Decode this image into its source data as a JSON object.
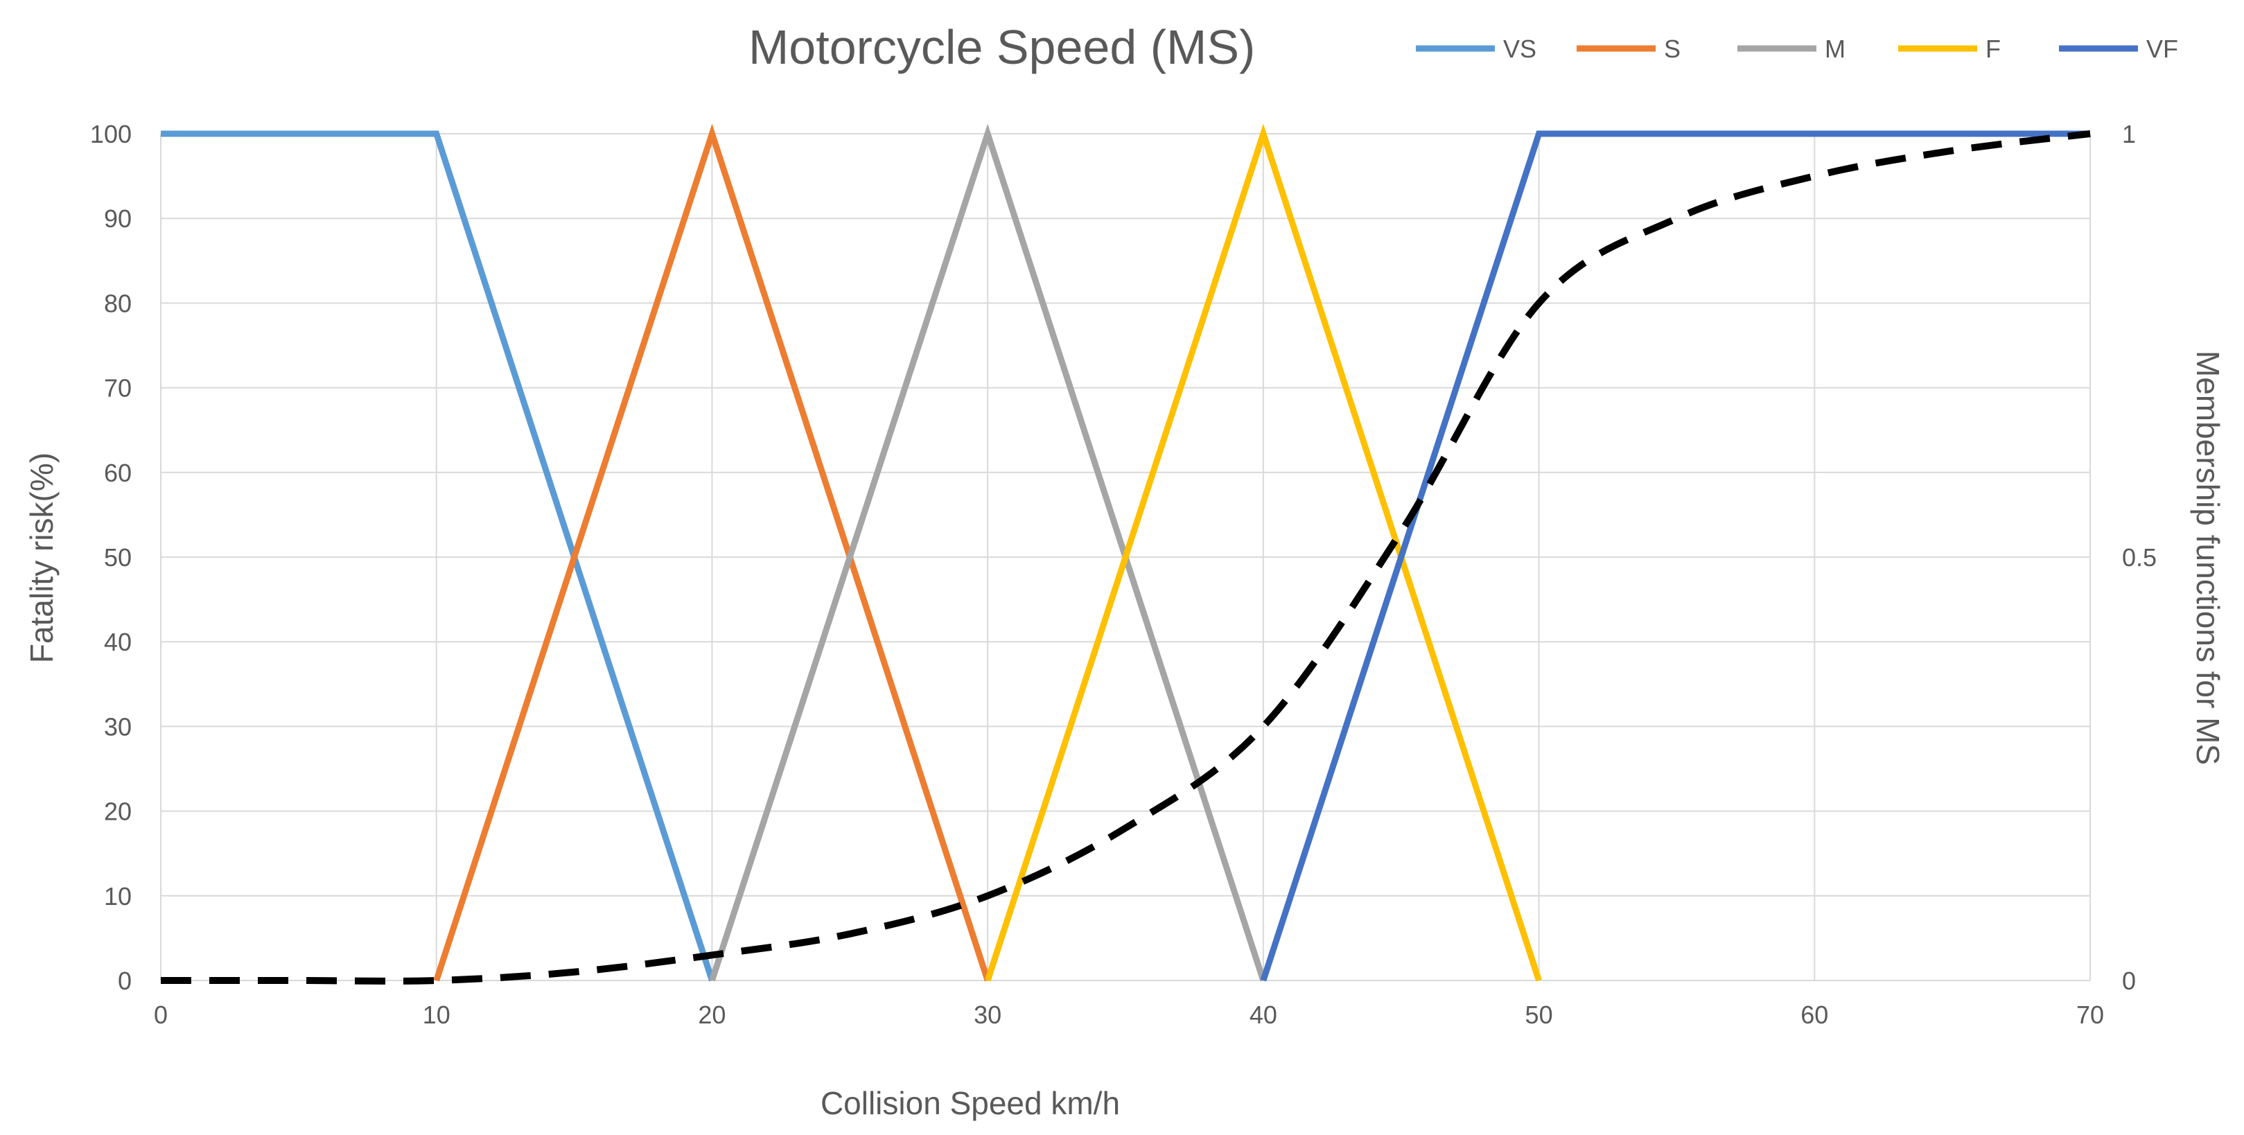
{
  "chart_data": {
    "type": "line",
    "title": "Motorcycle Speed (MS)",
    "xlabel": "Collision Speed km/h",
    "ylabel": "Fatality risk(%)",
    "y2label": "Membership functions for MS",
    "xlim": [
      0,
      70
    ],
    "ylim": [
      0,
      100
    ],
    "y2lim": [
      0,
      1
    ],
    "grid": true,
    "legend_position": "top-right",
    "x_ticks": [
      "0",
      "10",
      "20",
      "30",
      "40",
      "50",
      "60",
      "70"
    ],
    "y_ticks": [
      "0",
      "10",
      "20",
      "30",
      "40",
      "50",
      "60",
      "70",
      "80",
      "90",
      "100"
    ],
    "y2_ticks": [
      "0",
      "0.5",
      "1"
    ],
    "series": [
      {
        "name": "VS",
        "color": "#5B9BD5",
        "x": [
          0,
          10,
          20
        ],
        "y": [
          1,
          1,
          0
        ],
        "axis": "right"
      },
      {
        "name": "S",
        "color": "#ED7D31",
        "x": [
          10,
          20,
          30
        ],
        "y": [
          0,
          1,
          0
        ],
        "axis": "right"
      },
      {
        "name": "M",
        "color": "#A5A5A5",
        "x": [
          20,
          30,
          40
        ],
        "y": [
          0,
          1,
          0
        ],
        "axis": "right"
      },
      {
        "name": "F",
        "color": "#FFC000",
        "x": [
          30,
          40,
          50
        ],
        "y": [
          0,
          1,
          0
        ],
        "axis": "right"
      },
      {
        "name": "VF",
        "color": "#4472C4",
        "x": [
          40,
          50,
          70
        ],
        "y": [
          0,
          1,
          1
        ],
        "axis": "right"
      }
    ],
    "fatality_risk": {
      "name": "Fatality risk",
      "color": "#000000",
      "style": "dashed",
      "axis": "left",
      "x": [
        0,
        5,
        10,
        15,
        20,
        25,
        30,
        35,
        40,
        45,
        50,
        55,
        60,
        65,
        70
      ],
      "y": [
        0,
        0,
        0,
        1,
        3,
        5.5,
        10,
        18,
        30,
        53,
        80,
        90,
        95,
        98,
        100
      ]
    }
  }
}
